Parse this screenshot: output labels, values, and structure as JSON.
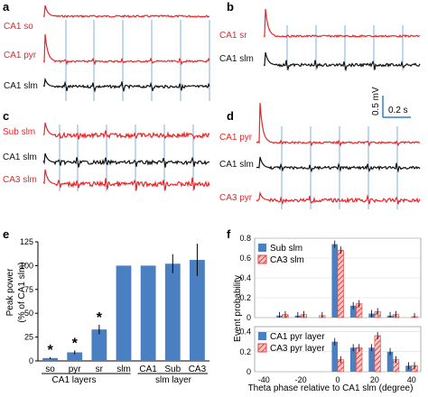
{
  "colors": {
    "red": "#e8262a",
    "black": "#111111",
    "blue_mark": "#7fb0dc",
    "bar_blue": "#4a7fc1",
    "bar_red": "#e0433f"
  },
  "panels": {
    "a": {
      "label": "a",
      "traces": [
        "CA1 so",
        "CA1 pyr",
        "CA1 slm"
      ]
    },
    "b": {
      "label": "b",
      "traces": [
        "CA1 sr",
        "CA1 slm"
      ]
    },
    "c": {
      "label": "c",
      "traces": [
        "Sub slm",
        "CA1 slm",
        "CA3 slm"
      ]
    },
    "d": {
      "label": "d",
      "traces": [
        "CA1 pyr",
        "CA1 slm",
        "CA3 pyr"
      ]
    },
    "e": {
      "label": "e"
    },
    "f": {
      "label": "f"
    }
  },
  "scale_bar": {
    "voltage": "0.5 mV",
    "time": "0.2 s"
  },
  "chart_data": [
    {
      "type": "bar",
      "panel": "e",
      "categories": [
        "so",
        "pyr",
        "sr",
        "slm",
        "CA1",
        "Sub",
        "CA3"
      ],
      "values": [
        3,
        9,
        33,
        100,
        100,
        102,
        106
      ],
      "errors": [
        1,
        2,
        5,
        0,
        0,
        10,
        17
      ],
      "significance": [
        "*",
        "*",
        "*",
        "",
        "",
        "",
        ""
      ],
      "groups": [
        "CA1 layers",
        "slm layer"
      ],
      "ylabel": "Peak power\n(% of CA1 slm)",
      "ylim": [
        0,
        125
      ],
      "yticks": [
        0,
        25,
        50,
        75,
        100,
        125
      ]
    },
    {
      "type": "bar",
      "panel": "f",
      "xlabel": "Theta phase relative to CA1 slm (degree)",
      "ylabel": "Event probability",
      "xticks": [
        -40,
        -20,
        0,
        20,
        40
      ],
      "subplots": [
        {
          "yticks": [
            0,
            0.2,
            0.4,
            0.6,
            0.8
          ],
          "ylim": [
            0,
            0.8
          ],
          "x": [
            -40,
            -30,
            -20,
            -10,
            0,
            10,
            20,
            30,
            40
          ],
          "series": [
            {
              "name": "Sub slm",
              "values": [
                0.0,
                0.02,
                0.02,
                0.0,
                0.74,
                0.12,
                0.04,
                0.02,
                0.0
              ]
            },
            {
              "name": "CA3 slm",
              "values": [
                0.0,
                0.03,
                0.03,
                0.02,
                0.68,
                0.14,
                0.06,
                0.03,
                0.01
              ]
            }
          ]
        },
        {
          "yticks": [
            0,
            0.2,
            0.4
          ],
          "ylim": [
            0,
            0.45
          ],
          "x": [
            -40,
            -30,
            -20,
            -10,
            0,
            10,
            20,
            30,
            40
          ],
          "series": [
            {
              "name": "CA1 pyr layer",
              "values": [
                0.0,
                0.0,
                0.0,
                0.0,
                0.3,
                0.24,
                0.24,
                0.2,
                0.06
              ]
            },
            {
              "name": "CA3 pyr layer",
              "values": [
                0.0,
                0.0,
                0.0,
                0.0,
                0.12,
                0.24,
                0.36,
                0.12,
                0.06
              ]
            }
          ]
        }
      ]
    }
  ]
}
